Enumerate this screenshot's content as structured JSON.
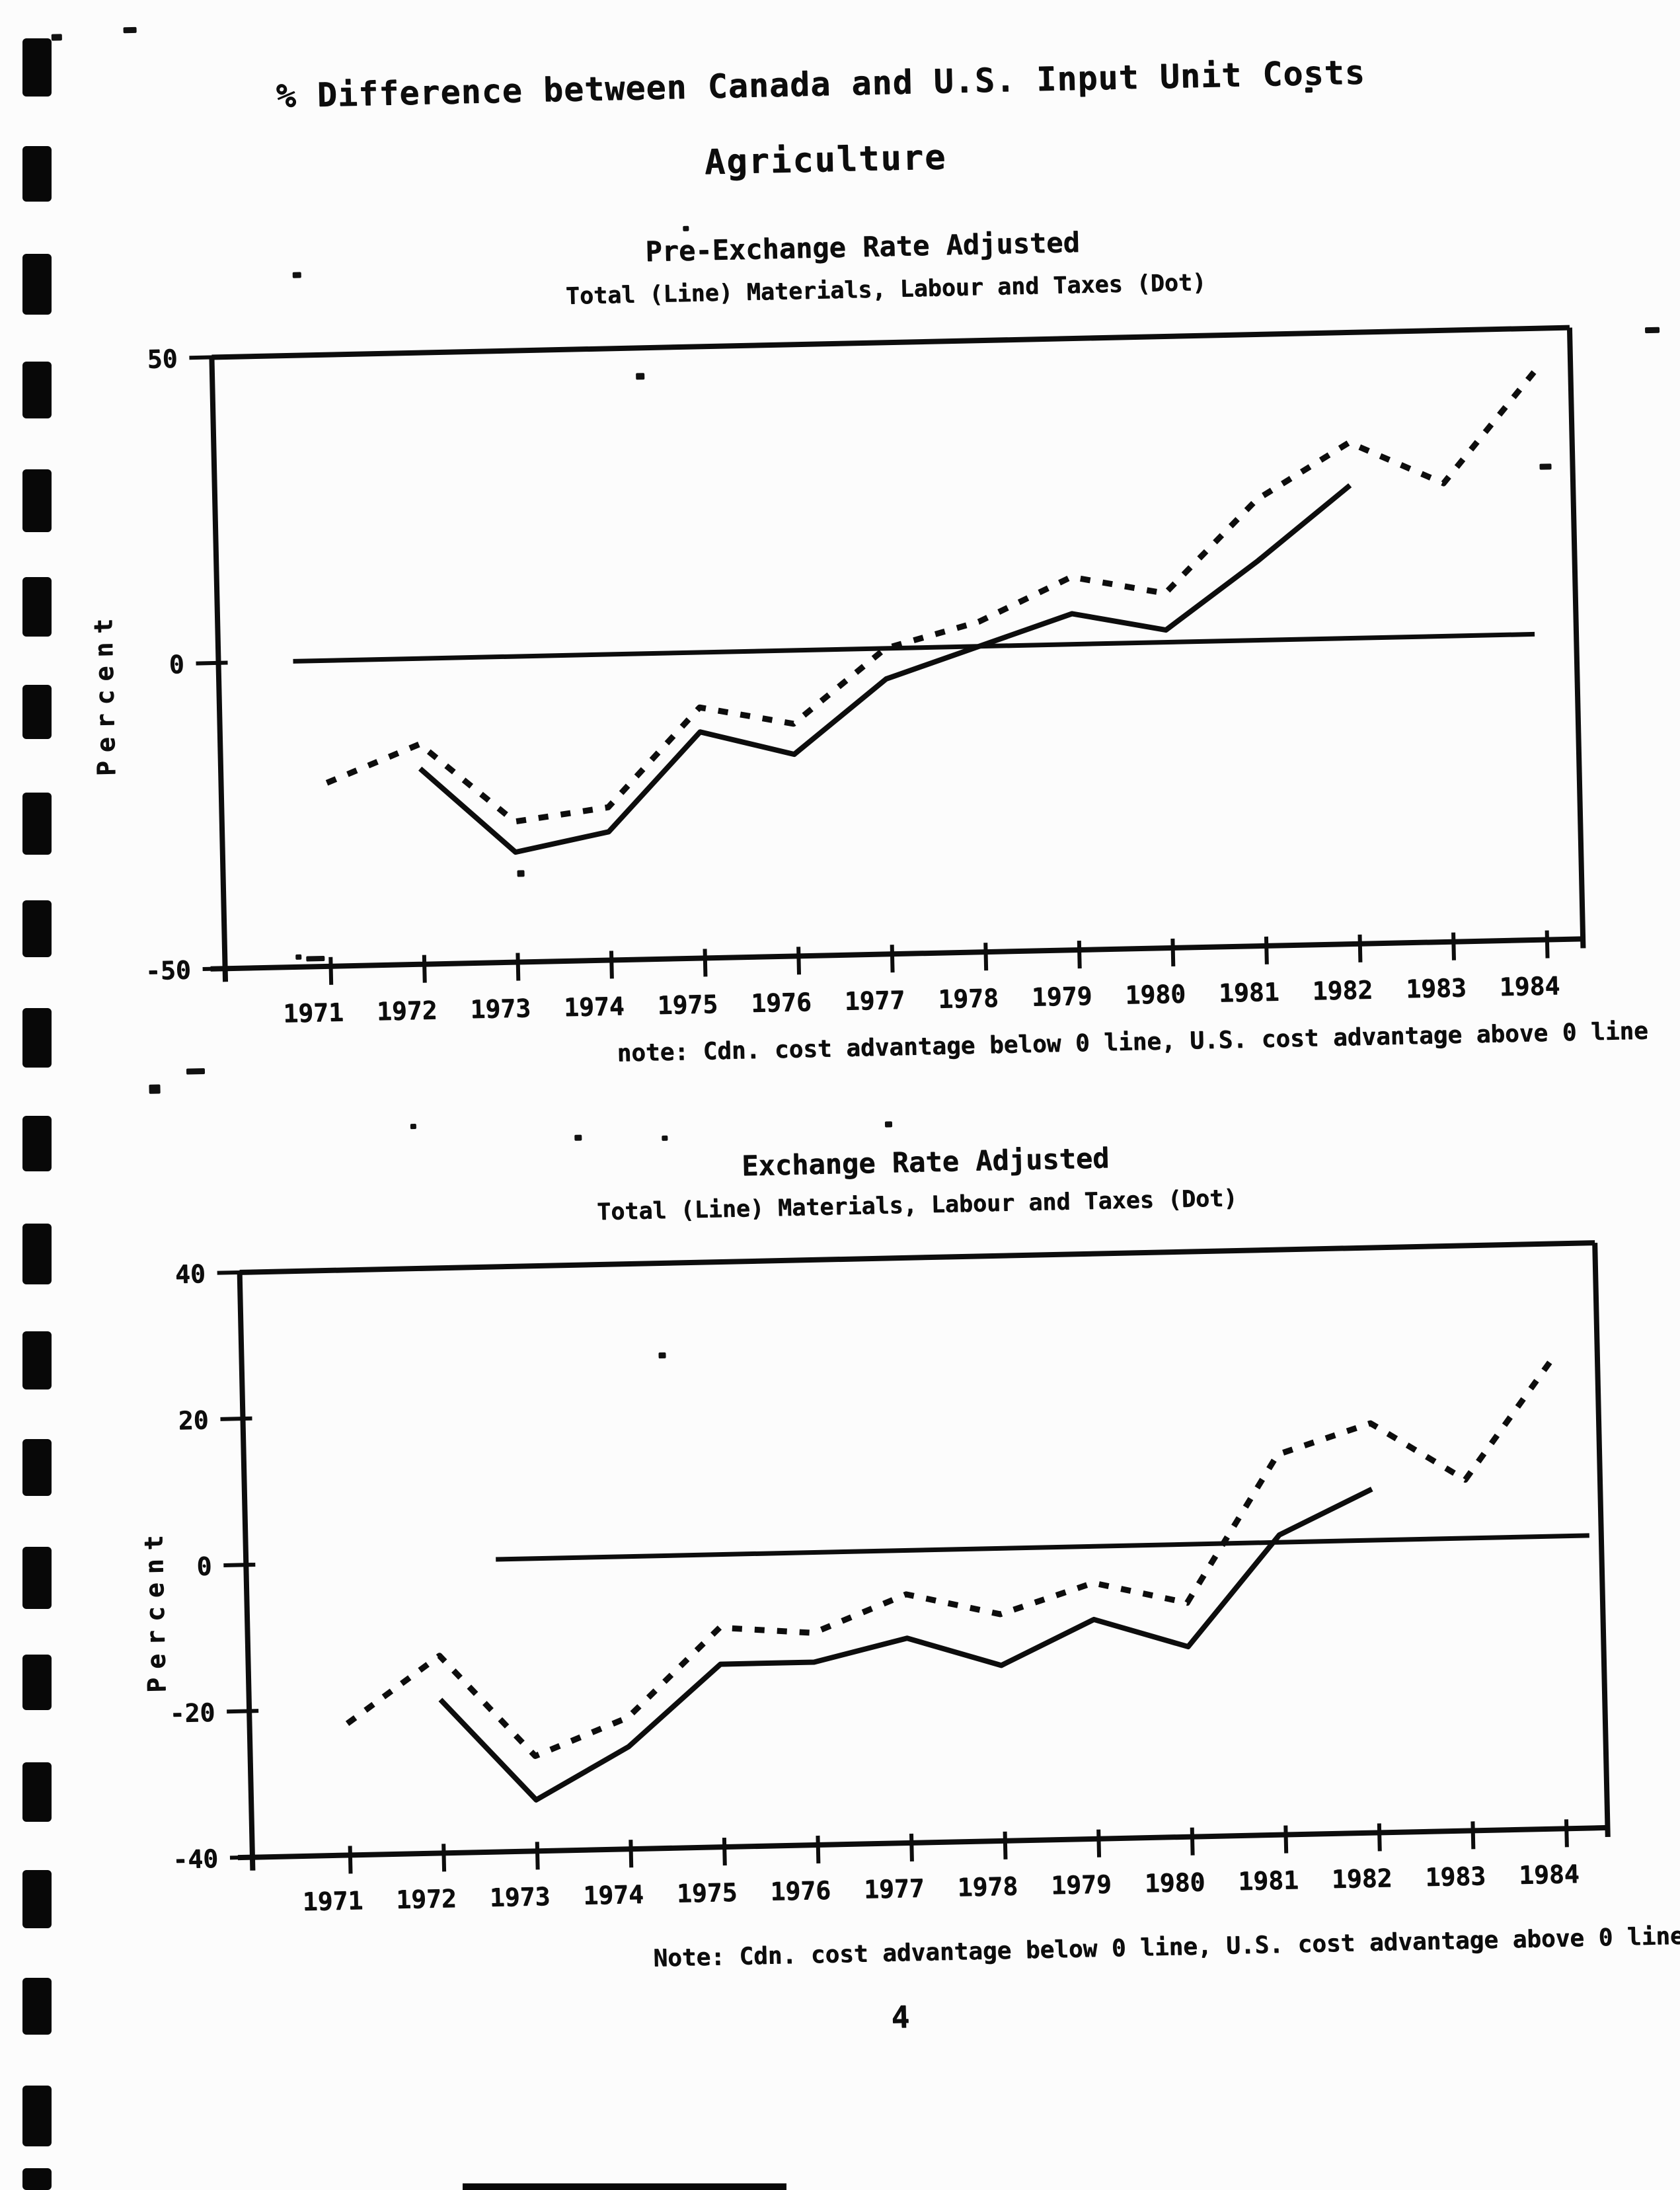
{
  "page": {
    "title_line1": "% Difference between Canada and U.S. Input Unit Costs",
    "title_line2": "Agriculture",
    "page_number": "4",
    "ink_color": "#0d0d0d",
    "paper_color": "#fcfcfc"
  },
  "chart_data": [
    {
      "type": "line",
      "title": "Pre-Exchange Rate Adjusted",
      "legend_line": "Total (Line)   Materials, Labour and Taxes (Dot)",
      "ylabel": "Percent",
      "xlabel": "",
      "x": [
        1971,
        1972,
        1973,
        1974,
        1975,
        1976,
        1977,
        1978,
        1979,
        1980,
        1981,
        1982,
        1983,
        1984
      ],
      "ylim": [
        -50,
        50
      ],
      "yticks": [
        50,
        0,
        -50
      ],
      "grid": false,
      "zero_line": true,
      "legend_position": "subtitle",
      "series": [
        {
          "name": "Total (Line)",
          "line_style": "solid",
          "values": [
            null,
            -18,
            -32,
            -29,
            -13,
            -17,
            -5,
            0,
            5,
            2,
            13,
            25,
            null,
            null
          ]
        },
        {
          "name": "Materials, Labour and Taxes (Dot)",
          "line_style": "dashed",
          "values": [
            -20,
            -14,
            -27,
            -25,
            -9,
            -12,
            0,
            4,
            11,
            8,
            23,
            32,
            25,
            43
          ]
        }
      ],
      "note": "note: Cdn. cost advantage below 0 line, U.S. cost advantage above 0 line"
    },
    {
      "type": "line",
      "title": "Exchange Rate Adjusted",
      "legend_line": "Total (Line)   Materials, Labour and Taxes (Dot)",
      "ylabel": "Percent",
      "xlabel": "",
      "x": [
        1971,
        1972,
        1973,
        1974,
        1975,
        1976,
        1977,
        1978,
        1979,
        1980,
        1981,
        1982,
        1983,
        1984
      ],
      "ylim": [
        -40,
        40
      ],
      "yticks": [
        40,
        20,
        0,
        -20,
        -40
      ],
      "grid": false,
      "zero_line": true,
      "legend_position": "subtitle",
      "series": [
        {
          "name": "Total (Line)",
          "line_style": "solid",
          "values": [
            null,
            -19,
            -33,
            -26,
            -15,
            -15,
            -12,
            -16,
            -10,
            -14,
            1,
            7,
            null,
            null
          ]
        },
        {
          "name": "Materials, Labour and Taxes (Dot)",
          "line_style": "dashed",
          "values": [
            -22,
            -13,
            -27,
            -22,
            -10,
            -11,
            -6,
            -9,
            -5,
            -8,
            12,
            16,
            8,
            25
          ]
        }
      ],
      "note": "Note: Cdn. cost advantage below 0 line, U.S. cost advantage above 0 line"
    }
  ]
}
